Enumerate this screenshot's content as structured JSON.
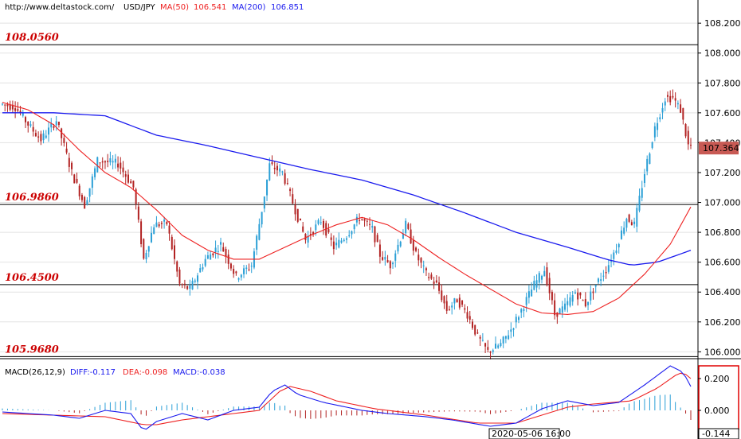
{
  "header": {
    "url": "http://www.deltastock.com/",
    "symbol": "USD/JPY",
    "ma50_label": "MA(50)",
    "ma50_value": "106.541",
    "ma200_label": "MA(200)",
    "ma200_value": "106.851"
  },
  "macd_header": {
    "title": "MACD(26,12,9)",
    "diff": "DIFF:-0.117",
    "dea": "DEA:-0.098",
    "macd": "MACD:-0.038"
  },
  "levels": [
    "108.0560",
    "106.9860",
    "106.4500",
    "105.9680"
  ],
  "price_ticks": [
    "108.200",
    "108.000",
    "107.800",
    "107.600",
    "107.400",
    "107.200",
    "107.000",
    "106.800",
    "106.600",
    "106.400",
    "106.200",
    "106.000"
  ],
  "current_price": "107.364",
  "macd_ticks": [
    "0.200",
    "0.000"
  ],
  "macd_current": "-0.144",
  "time_label": "2020-05-06 16:00",
  "colors": {
    "up": "#2a9fd6",
    "down": "#b22222",
    "ma50": "#ee2222",
    "ma200": "#1a1aee",
    "level": "#cc0000"
  },
  "chart_data": {
    "type": "candlestick",
    "ylim": [
      105.97,
      108.27
    ],
    "macd_ylim": [
      -0.18,
      0.32
    ],
    "horizontal_levels": [
      108.056,
      106.986,
      106.45,
      105.968
    ],
    "ohlc_keypoints": [
      [
        0,
        107.66
      ],
      [
        6,
        107.64
      ],
      [
        12,
        107.5
      ],
      [
        16,
        107.42
      ],
      [
        22,
        107.55
      ],
      [
        28,
        107.2
      ],
      [
        33,
        106.98
      ],
      [
        38,
        107.28
      ],
      [
        46,
        107.26
      ],
      [
        52,
        107.1
      ],
      [
        56,
        106.62
      ],
      [
        60,
        106.85
      ],
      [
        65,
        106.86
      ],
      [
        70,
        106.45
      ],
      [
        74,
        106.42
      ],
      [
        80,
        106.62
      ],
      [
        86,
        106.72
      ],
      [
        92,
        106.5
      ],
      [
        98,
        106.58
      ],
      [
        102,
        106.95
      ],
      [
        105,
        107.25
      ],
      [
        110,
        107.2
      ],
      [
        115,
        106.95
      ],
      [
        119,
        106.75
      ],
      [
        125,
        106.88
      ],
      [
        130,
        106.7
      ],
      [
        135,
        106.78
      ],
      [
        140,
        106.9
      ],
      [
        145,
        106.82
      ],
      [
        148,
        106.65
      ],
      [
        152,
        106.58
      ],
      [
        158,
        106.85
      ],
      [
        162,
        106.65
      ],
      [
        166,
        106.52
      ],
      [
        170,
        106.45
      ],
      [
        174,
        106.28
      ],
      [
        178,
        106.35
      ],
      [
        182,
        106.25
      ],
      [
        186,
        106.1
      ],
      [
        190,
        106.0
      ],
      [
        195,
        106.05
      ],
      [
        199,
        106.15
      ],
      [
        203,
        106.28
      ],
      [
        208,
        106.45
      ],
      [
        212,
        106.55
      ],
      [
        216,
        106.25
      ],
      [
        220,
        106.3
      ],
      [
        224,
        106.4
      ],
      [
        228,
        106.32
      ],
      [
        232,
        106.45
      ],
      [
        236,
        106.55
      ],
      [
        240,
        106.7
      ],
      [
        244,
        106.9
      ],
      [
        247,
        106.85
      ],
      [
        251,
        107.2
      ],
      [
        255,
        107.5
      ],
      [
        259,
        107.7
      ],
      [
        262,
        107.7
      ],
      [
        265,
        107.62
      ],
      [
        268,
        107.38
      ]
    ],
    "ma50_points": [
      [
        0,
        107.67
      ],
      [
        10,
        107.62
      ],
      [
        20,
        107.52
      ],
      [
        30,
        107.35
      ],
      [
        40,
        107.2
      ],
      [
        50,
        107.1
      ],
      [
        60,
        106.95
      ],
      [
        70,
        106.78
      ],
      [
        80,
        106.68
      ],
      [
        90,
        106.62
      ],
      [
        100,
        106.62
      ],
      [
        110,
        106.7
      ],
      [
        120,
        106.78
      ],
      [
        130,
        106.85
      ],
      [
        140,
        106.9
      ],
      [
        150,
        106.85
      ],
      [
        160,
        106.75
      ],
      [
        170,
        106.63
      ],
      [
        180,
        106.52
      ],
      [
        190,
        106.42
      ],
      [
        200,
        106.32
      ],
      [
        210,
        106.26
      ],
      [
        220,
        106.25
      ],
      [
        230,
        106.27
      ],
      [
        240,
        106.36
      ],
      [
        250,
        106.52
      ],
      [
        260,
        106.72
      ],
      [
        268,
        106.97
      ]
    ],
    "ma200_points": [
      [
        0,
        107.6
      ],
      [
        20,
        107.6
      ],
      [
        40,
        107.58
      ],
      [
        60,
        107.45
      ],
      [
        80,
        107.38
      ],
      [
        100,
        107.3
      ],
      [
        120,
        107.22
      ],
      [
        140,
        107.15
      ],
      [
        160,
        107.05
      ],
      [
        180,
        106.93
      ],
      [
        200,
        106.8
      ],
      [
        220,
        106.7
      ],
      [
        235,
        106.62
      ],
      [
        245,
        106.58
      ],
      [
        255,
        106.6
      ],
      [
        268,
        106.68
      ]
    ],
    "diff_points": [
      [
        0,
        -0.01
      ],
      [
        20,
        -0.03
      ],
      [
        30,
        -0.05
      ],
      [
        40,
        0.0
      ],
      [
        50,
        -0.02
      ],
      [
        55,
        -0.13
      ],
      [
        60,
        -0.07
      ],
      [
        70,
        -0.02
      ],
      [
        80,
        -0.06
      ],
      [
        90,
        0.0
      ],
      [
        100,
        0.02
      ],
      [
        105,
        0.12
      ],
      [
        110,
        0.16
      ],
      [
        115,
        0.1
      ],
      [
        125,
        0.05
      ],
      [
        140,
        0.0
      ],
      [
        150,
        -0.02
      ],
      [
        165,
        -0.04
      ],
      [
        175,
        -0.06
      ],
      [
        190,
        -0.1
      ],
      [
        200,
        -0.08
      ],
      [
        210,
        0.01
      ],
      [
        220,
        0.06
      ],
      [
        230,
        0.03
      ],
      [
        240,
        0.05
      ],
      [
        250,
        0.16
      ],
      [
        255,
        0.22
      ],
      [
        260,
        0.28
      ],
      [
        265,
        0.24
      ],
      [
        268,
        0.15
      ]
    ],
    "dea_points": [
      [
        0,
        -0.02
      ],
      [
        20,
        -0.03
      ],
      [
        40,
        -0.04
      ],
      [
        55,
        -0.09
      ],
      [
        60,
        -0.09
      ],
      [
        70,
        -0.06
      ],
      [
        90,
        -0.02
      ],
      [
        100,
        0.0
      ],
      [
        108,
        0.12
      ],
      [
        112,
        0.15
      ],
      [
        120,
        0.12
      ],
      [
        130,
        0.06
      ],
      [
        145,
        0.01
      ],
      [
        165,
        -0.03
      ],
      [
        185,
        -0.08
      ],
      [
        200,
        -0.08
      ],
      [
        210,
        -0.03
      ],
      [
        220,
        0.02
      ],
      [
        230,
        0.04
      ],
      [
        245,
        0.06
      ],
      [
        255,
        0.14
      ],
      [
        262,
        0.22
      ],
      [
        265,
        0.24
      ],
      [
        268,
        0.2
      ]
    ]
  }
}
